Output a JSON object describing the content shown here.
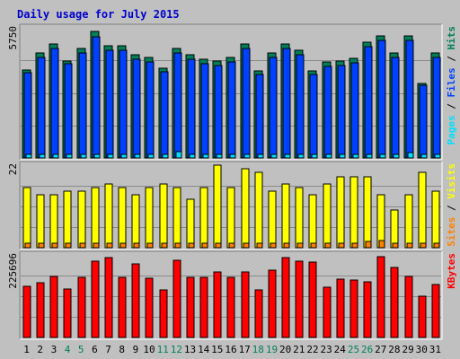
{
  "chart_data": {
    "title": "Daily usage for July 2015",
    "type": "bar",
    "days": [
      "1",
      "2",
      "3",
      "4",
      "5",
      "6",
      "7",
      "8",
      "9",
      "10",
      "11",
      "12",
      "13",
      "14",
      "15",
      "16",
      "17",
      "18",
      "19",
      "20",
      "21",
      "22",
      "23",
      "24",
      "25",
      "26",
      "27",
      "28",
      "29",
      "30",
      "31"
    ],
    "weekend_days": [
      "4",
      "5",
      "11",
      "12",
      "18",
      "19",
      "25",
      "26"
    ],
    "colors": {
      "title": "#0000cc",
      "background": "#c0c0c0",
      "panel": "#c0c0c0",
      "weekday_tick": "#000000",
      "weekend_tick": "#00805a",
      "hits": "#00805a",
      "files": "#0040ff",
      "pages": "#00e0ff",
      "visits": "#ffff00",
      "sites": "#ff8000",
      "kbytes": "#ff0000"
    },
    "panels": [
      {
        "name": "hits-files-pages",
        "ymax_label": "5750",
        "ymax": 5750,
        "series": [
          {
            "name": "Hits",
            "color_key": "hits",
            "values": [
              3900,
              4650,
              5050,
              4300,
              4850,
              5600,
              4950,
              4950,
              4550,
              4450,
              3950,
              4850,
              4550,
              4350,
              4300,
              4450,
              5050,
              3850,
              4650,
              5050,
              4750,
              3850,
              4250,
              4300,
              4400,
              5100,
              5400,
              4650,
              5400,
              3300,
              4650
            ]
          },
          {
            "name": "Files",
            "color_key": "files",
            "values": [
              3750,
              4450,
              4850,
              4150,
              4650,
              5350,
              4750,
              4750,
              4350,
              4250,
              3800,
              4650,
              4350,
              4150,
              4100,
              4250,
              4850,
              3700,
              4450,
              4850,
              4550,
              3700,
              4050,
              4100,
              4200,
              4900,
              5200,
              4450,
              5200,
              3200,
              4450
            ]
          },
          {
            "name": "Pages",
            "color_key": "pages",
            "values": [
              90,
              80,
              150,
              70,
              60,
              90,
              130,
              80,
              60,
              70,
              80,
              280,
              70,
              70,
              60,
              70,
              60,
              60,
              80,
              70,
              60,
              70,
              60,
              70,
              80,
              90,
              110,
              150,
              220,
              70,
              90
            ]
          }
        ],
        "legend": [
          {
            "text": "Pages",
            "color_key": "pages"
          },
          {
            "text": " / ",
            "color_key": "weekday_tick"
          },
          {
            "text": "Files",
            "color_key": "files"
          },
          {
            "text": " / ",
            "color_key": "weekday_tick"
          },
          {
            "text": "Hits",
            "color_key": "hits"
          }
        ]
      },
      {
        "name": "visits-sites",
        "ymax_label": "22",
        "ymax": 22,
        "series": [
          {
            "name": "Visits",
            "color_key": "visits",
            "values": [
              16,
              14,
              14,
              15,
              15,
              16,
              17,
              16,
              14,
              16,
              17,
              16,
              13,
              16,
              22,
              16,
              21,
              20,
              15,
              17,
              16,
              14,
              17,
              19,
              19,
              19,
              14,
              10,
              14,
              20,
              15
            ]
          },
          {
            "name": "Sites",
            "color_key": "sites",
            "values": [
              1.2,
              1.2,
              1.2,
              1.2,
              1.2,
              1.2,
              1.2,
              1.2,
              1.2,
              1.2,
              1.2,
              1.2,
              1.2,
              1.2,
              1.2,
              1.2,
              1.2,
              1.2,
              1.2,
              1.2,
              1.2,
              1.2,
              1.2,
              1.2,
              1.2,
              1.6,
              1.8,
              1.2,
              1.2,
              1.2,
              1.2
            ]
          }
        ],
        "legend": [
          {
            "text": "Sites",
            "color_key": "sites"
          },
          {
            "text": " / ",
            "color_key": "weekday_tick"
          },
          {
            "text": "Visits",
            "color_key": "visits"
          }
        ]
      },
      {
        "name": "kbytes",
        "ymax_label": "225696",
        "ymax": 225696,
        "series": [
          {
            "name": "KBytes",
            "color_key": "kbytes",
            "values": [
              140000,
              150000,
              167000,
              133000,
              165000,
              208000,
              218000,
              165000,
              200000,
              163000,
              131000,
              210000,
              165000,
              164000,
              180000,
              164000,
              178000,
              131000,
              185000,
              219000,
              208000,
              207000,
              138000,
              160000,
              158000,
              151000,
              220000,
              191000,
              167000,
              113000,
              144000
            ]
          }
        ],
        "legend": [
          {
            "text": "KBytes",
            "color_key": "kbytes"
          }
        ]
      }
    ]
  }
}
